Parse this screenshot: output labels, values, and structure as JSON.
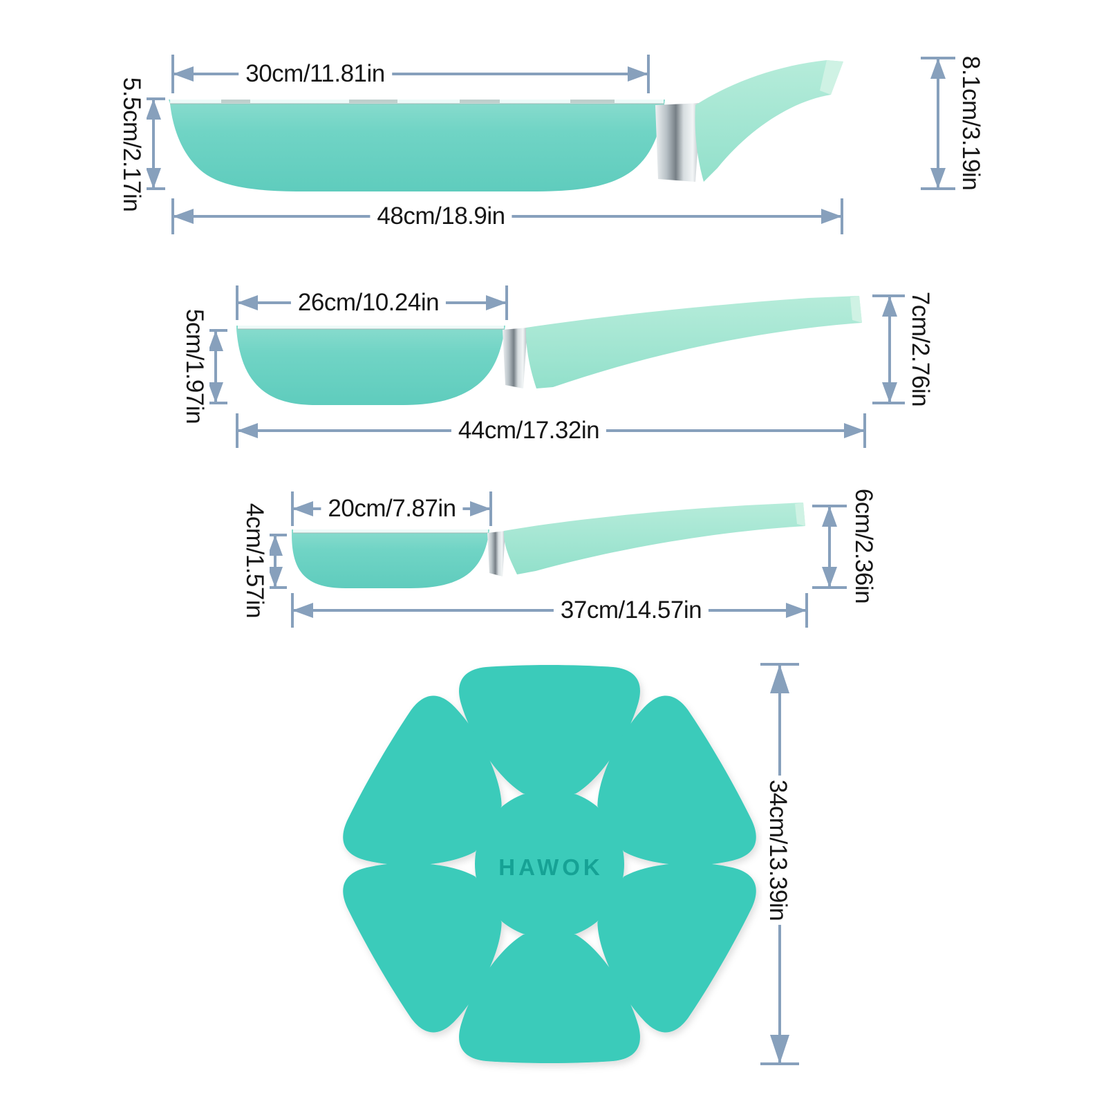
{
  "diagram": {
    "items": [
      {
        "name": "frying-pan-large",
        "top_width": "30cm/11.81in",
        "pan_depth": "5.5cm/2.17in",
        "overall_length": "48cm/18.9in",
        "overall_height": "8.1cm/3.19in"
      },
      {
        "name": "frying-pan-medium",
        "top_width": "26cm/10.24in",
        "pan_depth": "5cm/1.97in",
        "overall_length": "44cm/17.32in",
        "overall_height": "7cm/2.76in"
      },
      {
        "name": "frying-pan-small",
        "top_width": "20cm/7.87in",
        "pan_depth": "4cm/1.57in",
        "overall_length": "37cm/14.57in",
        "overall_height": "6cm/2.36in"
      }
    ],
    "protector": {
      "brand_label": "HAWOK",
      "diameter": "34cm/13.39in"
    }
  },
  "colors": {
    "dimension_line": "#87a0bc",
    "label_text": "#161616",
    "pan_body": "#6fd3c4",
    "pan_body_light": "#86dccd",
    "handle": "#a8e7d3",
    "metal": "#9aa4aa",
    "flower": "#3bcbba",
    "flower_text": "#16a295",
    "background": "#ffffff"
  }
}
